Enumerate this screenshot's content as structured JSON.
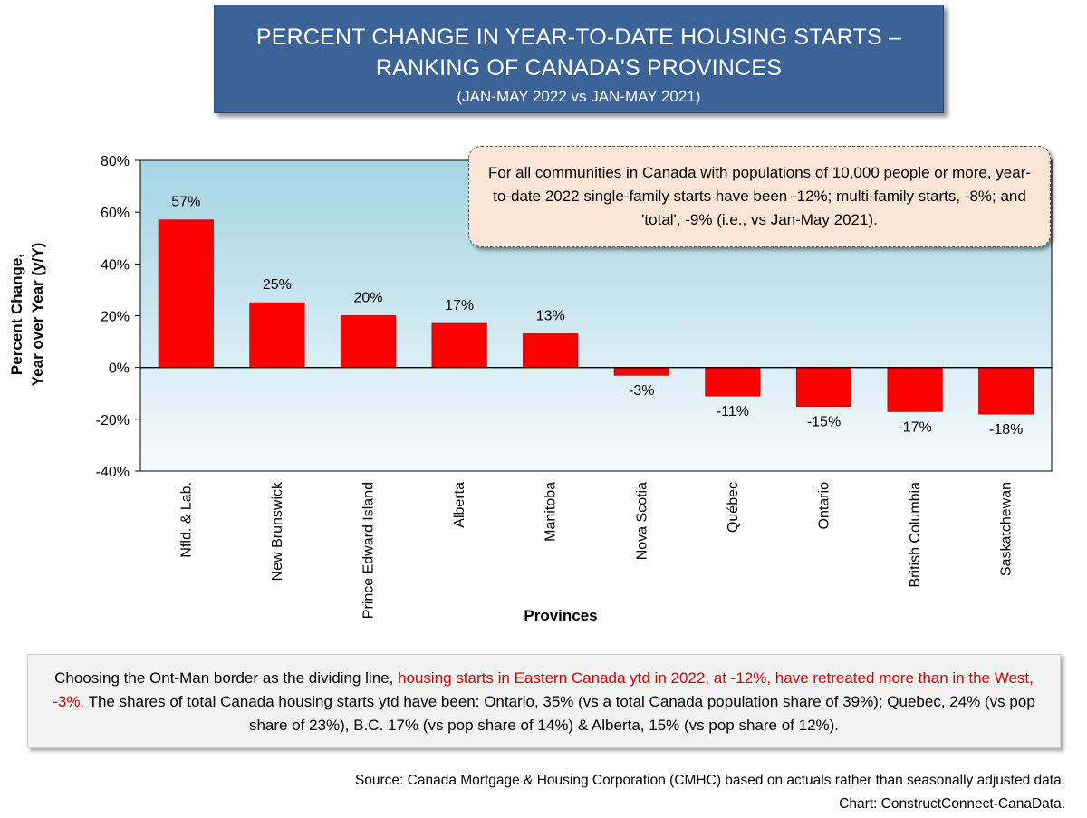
{
  "title": {
    "line1": "PERCENT CHANGE IN YEAR-TO-DATE HOUSING STARTS –",
    "line2": "RANKING OF CANADA'S PROVINCES",
    "subtitle": "(JAN-MAY 2022 vs JAN-MAY 2021)"
  },
  "callout": "For all communities in Canada with populations of 10,000 people or more, year-to-date 2022 single-family starts have been -12%; multi-family starts, -8%; and 'total', -9% (i.e., vs Jan-May 2021).",
  "note": {
    "part1": "Choosing the Ont-Man border as the dividing line, ",
    "highlight": "housing starts in Eastern Canada ytd in 2022, at -12%, have retreated more than in the West, -3%.",
    "part2": " The shares of total Canada housing starts ytd have been: Ontario, 35% (vs a total Canada population share of 39%); Quebec, 24% (vs pop share of 23%), B.C. 17% (vs pop share of 14%) & Alberta, 15% (vs pop share of 12%)."
  },
  "source": {
    "line1": "Source: Canada Mortgage & Housing Corporation (CMHC) based on actuals rather than seasonally adjusted data.",
    "line2": "Chart: ConstructConnect-CanaData."
  },
  "colors": {
    "bar": "#ff0000",
    "bar_edge": "#b00000",
    "title_bg": "#3b6397",
    "plot_bg_top": "#a3d4e2",
    "plot_bg_bottom": "#f6fbfd",
    "highlight_text": "#e00000"
  },
  "chart_data": {
    "type": "bar",
    "xlabel": "Provinces",
    "ylabel_line1": "Percent Change,",
    "ylabel_line2": "Year over Year (y/Y)",
    "ylim": [
      -40,
      80
    ],
    "yticks": [
      80,
      60,
      40,
      20,
      0,
      -20,
      -40
    ],
    "ytick_labels": [
      "80%",
      "60%",
      "40%",
      "20%",
      "0%",
      "-20%",
      "-40%"
    ],
    "grid": false,
    "legend": "none",
    "categories": [
      "Nfld. & Lab.",
      "New Brunswick",
      "Prince Edward Island",
      "Alberta",
      "Manitoba",
      "Nova Scotia",
      "Québec",
      "Ontario",
      "British Columbia",
      "Saskatchewan"
    ],
    "values": [
      57,
      25,
      20,
      17,
      13,
      -3,
      -11,
      -15,
      -17,
      -18
    ],
    "value_labels": [
      "57%",
      "25%",
      "20%",
      "17%",
      "13%",
      "-3%",
      "-11%",
      "-15%",
      "-17%",
      "-18%"
    ]
  }
}
